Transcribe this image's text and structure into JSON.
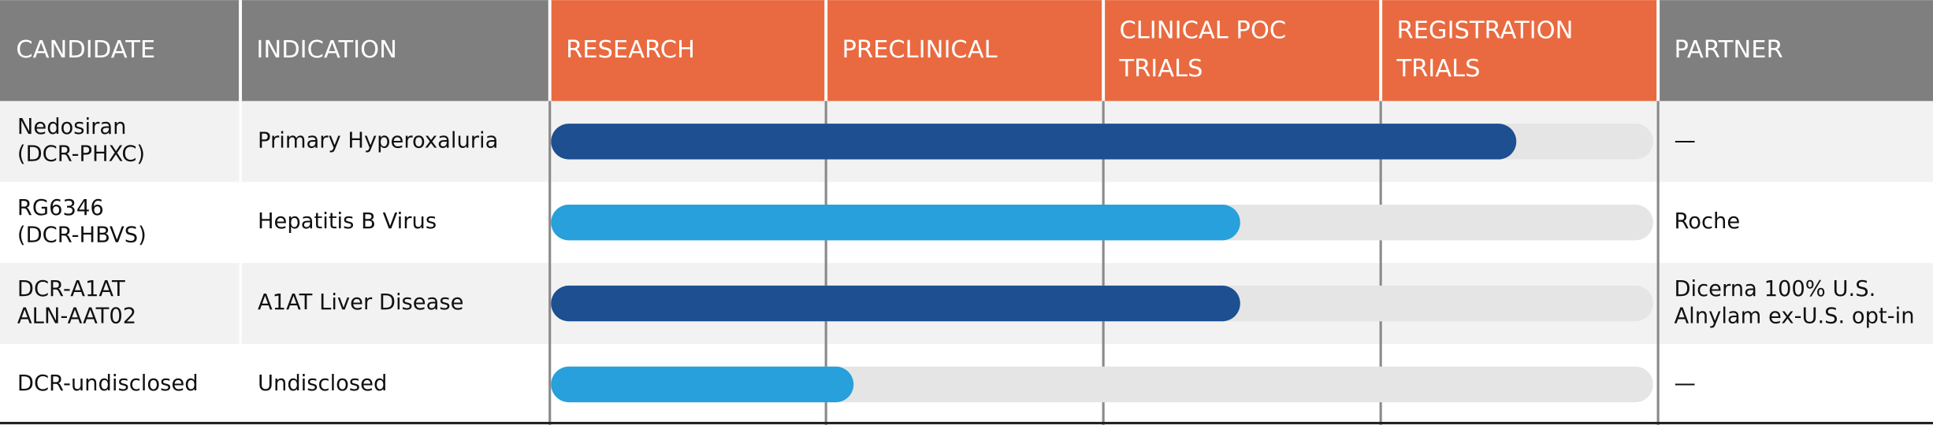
{
  "table": {
    "headers": [
      [
        "CANDIDATE"
      ],
      [
        "INDICATION"
      ],
      [
        "RESEARCH"
      ],
      [
        "PRECLINICAL"
      ],
      [
        "CLINICAL POC",
        "TRIALS"
      ],
      [
        "REGISTRATION",
        "TRIALS"
      ],
      [
        "PARTNER"
      ]
    ],
    "header_colors": [
      "#7f7f7f",
      "#7f7f7f",
      "#e96a40",
      "#e96a40",
      "#e96a40",
      "#e96a40",
      "#7f7f7f"
    ],
    "stage_count": 4,
    "rows": [
      {
        "candidate": [
          "Nedosiran",
          "(DCR-PHXC)"
        ],
        "indication": "Primary Hyperoxaluria",
        "progress": 3.5,
        "color": "#1d4f91",
        "partner": [
          "—"
        ]
      },
      {
        "candidate": [
          "RG6346",
          "(DCR-HBVS)"
        ],
        "indication": "Hepatitis B Virus",
        "progress": 2.5,
        "color": "#27a0db",
        "partner": [
          "Roche"
        ]
      },
      {
        "candidate": [
          "DCR-A1AT",
          "ALN-AAT02"
        ],
        "indication": "A1AT Liver Disease",
        "progress": 2.5,
        "color": "#1d4f91",
        "partner": [
          "Dicerna 100% U.S.",
          "Alnylam ex-U.S. opt-in"
        ]
      },
      {
        "candidate": [
          "DCR-undisclosed"
        ],
        "indication": "Undisclosed",
        "progress": 1.1,
        "color": "#27a0db",
        "partner": [
          "—"
        ]
      }
    ]
  }
}
